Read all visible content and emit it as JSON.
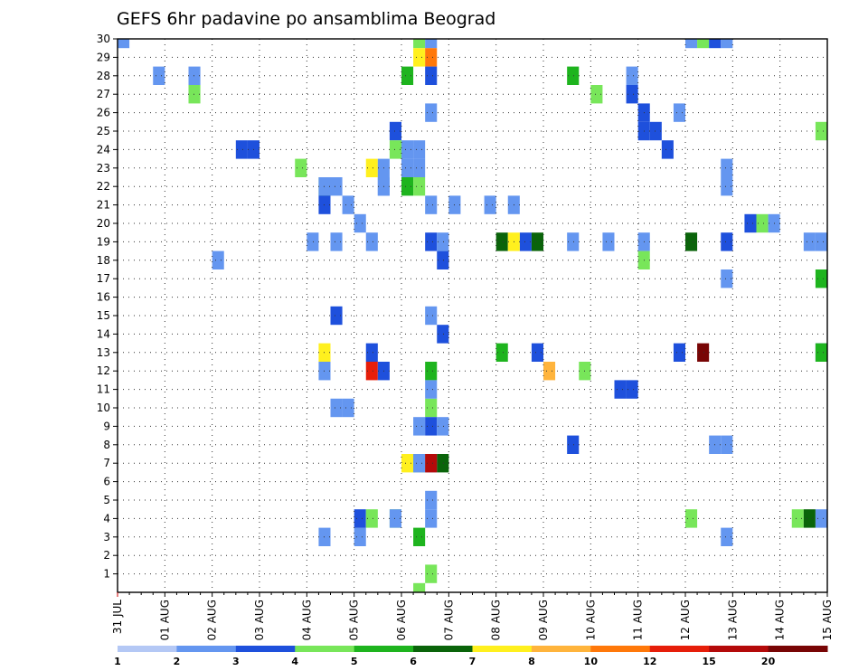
{
  "chart_data": {
    "type": "heatmap",
    "title": "GEFS 6hr padavine po ansamblima Beograd",
    "y_categories": [
      "1",
      "2",
      "3",
      "4",
      "5",
      "6",
      "7",
      "8",
      "9",
      "10",
      "11",
      "12",
      "13",
      "14",
      "15",
      "16",
      "17",
      "18",
      "19",
      "20",
      "21",
      "22",
      "23",
      "24",
      "25",
      "26",
      "27",
      "28",
      "29",
      "30"
    ],
    "x_tick_labels": [
      "31 JUL",
      "01 AUG",
      "02 AUG",
      "03 AUG",
      "04 AUG",
      "05 AUG",
      "06 AUG",
      "07 AUG",
      "08 AUG",
      "09 AUG",
      "10 AUG",
      "11 AUG",
      "12 AUG",
      "13 AUG",
      "14 AUG",
      "15 AUG"
    ],
    "x_range_days": [
      0,
      15
    ],
    "y_range": [
      0,
      30
    ],
    "grid": true,
    "levels": [
      1,
      2,
      3,
      4,
      5,
      6,
      7,
      8,
      10,
      12,
      15,
      20
    ],
    "colors": [
      "#b4c8f5",
      "#6496f0",
      "#1e50dc",
      "#78e65a",
      "#1eb41e",
      "#0a640a",
      "#fff01e",
      "#ffb43c",
      "#ff780a",
      "#e61e0a",
      "#b40a0a",
      "#780505"
    ],
    "cells": [
      [
        0,
        30,
        1
      ],
      [
        3,
        28,
        1
      ],
      [
        6,
        28,
        1
      ],
      [
        6,
        27,
        3
      ],
      [
        0,
        18,
        1
      ],
      [
        2,
        24,
        2
      ],
      [
        3,
        24,
        2
      ],
      [
        3,
        23,
        3
      ],
      [
        1,
        22,
        4
      ],
      [
        6,
        22,
        1
      ],
      [
        3,
        21,
        1
      ],
      [
        4,
        20,
        1
      ],
      [
        2,
        19,
        1
      ],
      [
        1,
        13,
        6
      ],
      [
        5,
        13,
        2
      ],
      [
        7,
        4,
        3
      ],
      [
        1,
        3,
        1
      ],
      [
        1,
        22,
        1
      ],
      [
        2,
        22,
        1
      ],
      [
        1,
        21,
        2
      ],
      [
        0,
        19,
        1
      ],
      [
        2,
        15,
        2
      ],
      [
        1,
        12,
        1
      ],
      [
        2,
        10,
        1
      ],
      [
        3,
        10,
        1
      ],
      [
        3,
        25,
        2
      ],
      [
        1,
        23,
        6
      ],
      [
        2,
        23,
        1
      ],
      [
        4,
        28,
        4
      ],
      [
        1,
        19,
        1
      ],
      [
        1,
        12,
        9
      ],
      [
        2,
        12,
        2
      ],
      [
        3,
        4,
        1
      ],
      [
        0,
        3,
        1
      ],
      [
        0,
        4,
        2
      ],
      [
        1,
        4,
        3
      ],
      [
        3,
        24,
        3
      ],
      [
        2,
        22,
        1
      ],
      [
        0,
        22,
        4
      ],
      [
        3,
        18,
        2
      ],
      [
        3,
        14,
        2
      ],
      [
        2,
        12,
        4
      ],
      [
        2,
        10,
        3
      ],
      [
        2,
        7,
        1
      ],
      [
        3,
        7,
        5
      ],
      [
        0,
        7,
        6
      ],
      [
        1,
        7,
        3
      ],
      [
        1,
        30,
        3
      ],
      [
        2,
        30,
        1
      ],
      [
        1,
        29,
        6
      ],
      [
        2,
        29,
        8
      ],
      [
        2,
        28,
        2
      ],
      [
        2,
        26,
        1
      ],
      [
        0,
        24,
        1
      ],
      [
        1,
        24,
        1
      ],
      [
        0,
        23,
        1
      ],
      [
        1,
        23,
        1
      ],
      [
        1,
        22,
        3
      ],
      [
        2,
        19,
        2
      ],
      [
        3,
        19,
        1
      ],
      [
        2,
        15,
        1
      ],
      [
        2,
        11,
        1
      ],
      [
        1,
        9,
        1
      ],
      [
        2,
        9,
        2
      ],
      [
        3,
        9,
        1
      ],
      [
        1,
        7,
        1
      ],
      [
        2,
        7,
        10
      ],
      [
        2,
        5,
        1
      ],
      [
        2,
        4,
        1
      ],
      [
        1,
        3,
        4
      ],
      [
        2,
        1,
        3
      ],
      [
        1,
        0,
        3
      ],
      [
        2,
        21,
        1
      ],
      [
        3,
        21,
        1
      ],
      [
        0,
        21,
        1
      ],
      [
        1,
        21,
        1
      ],
      [
        2,
        19,
        2
      ],
      [
        3,
        19,
        5
      ],
      [
        0,
        19,
        5
      ],
      [
        1,
        19,
        6
      ],
      [
        3,
        13,
        2
      ],
      [
        0,
        13,
        4
      ],
      [
        2,
        19,
        1
      ],
      [
        3,
        12,
        3
      ],
      [
        0,
        12,
        7
      ],
      [
        2,
        8,
        2
      ],
      [
        2,
        28,
        4
      ],
      [
        3,
        27,
        2
      ],
      [
        0,
        27,
        3
      ],
      [
        1,
        19,
        1
      ],
      [
        2,
        11,
        2
      ],
      [
        3,
        11,
        2
      ],
      [
        3,
        28,
        1
      ],
      [
        0,
        25,
        2
      ],
      [
        1,
        25,
        2
      ],
      [
        0,
        19,
        1
      ],
      [
        0,
        18,
        3
      ],
      [
        3,
        13,
        2
      ],
      [
        3,
        26,
        1
      ],
      [
        0,
        26,
        2
      ],
      [
        2,
        24,
        2
      ],
      [
        3,
        23,
        1
      ],
      [
        3,
        22,
        1
      ],
      [
        3,
        19,
        2
      ],
      [
        0,
        19,
        5
      ],
      [
        1,
        13,
        11
      ],
      [
        3,
        3,
        1
      ],
      [
        0,
        4,
        3
      ],
      [
        0,
        30,
        1
      ],
      [
        1,
        30,
        3
      ],
      [
        2,
        30,
        2
      ],
      [
        3,
        30,
        1
      ],
      [
        3,
        17,
        1
      ],
      [
        2,
        8,
        1
      ],
      [
        3,
        8,
        1
      ],
      [
        1,
        20,
        2
      ],
      [
        2,
        20,
        3
      ],
      [
        3,
        20,
        1
      ],
      [
        2,
        19,
        1
      ],
      [
        3,
        13,
        2
      ],
      [
        1,
        4,
        3
      ],
      [
        2,
        4,
        5
      ],
      [
        3,
        4,
        1
      ],
      [
        3,
        25,
        3
      ],
      [
        3,
        17,
        4
      ],
      [
        3,
        13,
        4
      ],
      [
        3,
        19,
        1
      ]
    ],
    "colorbar_labels": [
      "1",
      "2",
      "3",
      "4",
      "5",
      "6",
      "7",
      "8",
      "10",
      "12",
      "15",
      "20"
    ]
  }
}
